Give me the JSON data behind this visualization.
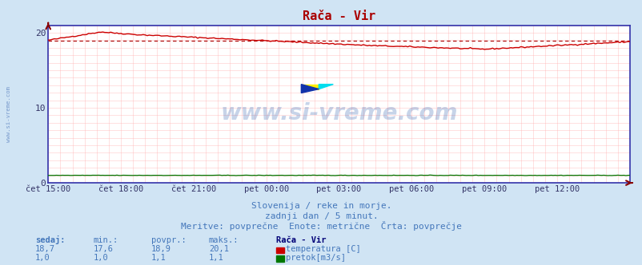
{
  "title": "Rača - Vir",
  "title_color": "#aa0000",
  "bg_color": "#d0e4f4",
  "plot_bg_color": "#ffffff",
  "grid_color": "#ffb0b0",
  "grid_color_v": "#ffb0b0",
  "x_tick_labels": [
    "čet 15:00",
    "čet 18:00",
    "čet 21:00",
    "pet 00:00",
    "pet 03:00",
    "pet 06:00",
    "pet 09:00",
    "pet 12:00"
  ],
  "x_tick_positions": [
    0,
    36,
    72,
    108,
    144,
    180,
    216,
    252
  ],
  "total_points": 289,
  "ylim": [
    0,
    21
  ],
  "yticks": [
    0,
    10,
    20
  ],
  "temp_color": "#cc0000",
  "flow_color": "#007700",
  "avg_line_color": "#aa0000",
  "avg_value": 18.9,
  "temp_min": 17.6,
  "temp_max": 20.1,
  "temp_current": 18.7,
  "temp_avg": 18.9,
  "flow_min": 1.0,
  "flow_max": 1.1,
  "flow_current": 1.0,
  "flow_avg": 1.1,
  "subtitle1": "Slovenija / reke in morje.",
  "subtitle2": "zadnji dan / 5 minut.",
  "subtitle3": "Meritve: povprečne  Enote: metrične  Črta: povprečje",
  "subtitle_color": "#4477bb",
  "watermark": "www.si-vreme.com",
  "left_label": "www.si-vreme.com",
  "left_label_color": "#7799cc",
  "legend_title": "Rača - Vir",
  "legend_title_color": "#000077",
  "legend_label1": "temperatura [C]",
  "legend_label2": "pretok[m3/s]",
  "spine_color": "#3333aa",
  "arrow_color": "#880000",
  "stats_color": "#4477bb",
  "header_color": "#4477bb"
}
